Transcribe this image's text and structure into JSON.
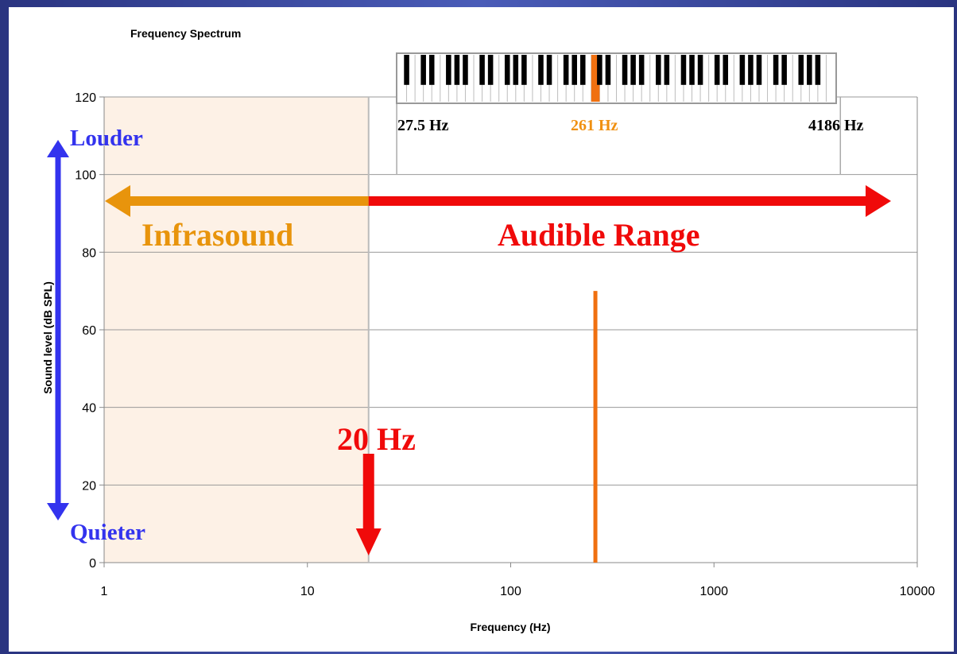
{
  "chart_data": {
    "type": "line",
    "title": "Frequency Spectrum",
    "xlabel": "Frequency (Hz)",
    "ylabel": "Sound level (dB SPL)",
    "x_scale": "log",
    "xlim": [
      1,
      10000
    ],
    "ylim": [
      0,
      120
    ],
    "x_ticks": [
      "1",
      "10",
      "100",
      "1000",
      "10000"
    ],
    "y_ticks": [
      "0",
      "20",
      "40",
      "60",
      "80",
      "100",
      "120"
    ],
    "grid": "horizontal",
    "series": [
      {
        "x": [
          261,
          261
        ],
        "y": [
          0,
          70
        ],
        "color": "#f07010"
      }
    ],
    "regions": [
      {
        "label": "Infrasound",
        "x_range": [
          1,
          20
        ],
        "color": "#e8940c"
      },
      {
        "label": "Audible Range",
        "x_range": [
          20,
          10000
        ],
        "color": "#f00a0a"
      }
    ],
    "annotations": {
      "threshold_label": "20 Hz",
      "threshold_x": 20,
      "louder_label": "Louder",
      "quieter_label": "Quieter",
      "piano_low_label": "27.5 Hz",
      "piano_low_x": 27.5,
      "piano_mid_label": "261 Hz",
      "piano_mid_x": 261,
      "piano_high_label": "4186 Hz",
      "piano_high_x": 4186
    }
  },
  "colors": {
    "infrasound_shade": "#fdf1e6",
    "infrasound": "#e8940c",
    "audible": "#f00a0a",
    "loudness_arrow": "#3333ee",
    "middle_c": "#f07010"
  }
}
